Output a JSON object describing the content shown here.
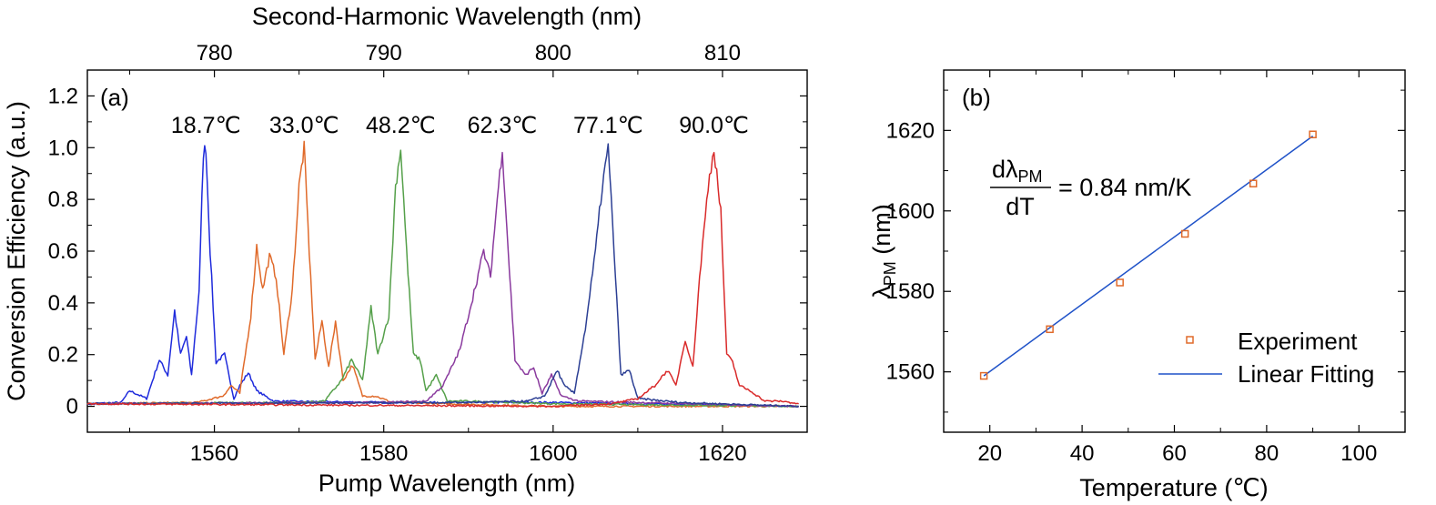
{
  "colors": {
    "blue": "#1f2bdc",
    "orange": "#e06a2a",
    "green": "#55a04a",
    "purple": "#8a3a9e",
    "navy": "#2c3f94",
    "red": "#d92a2a",
    "fit_line": "#1f52c8",
    "marker": "#e06a2a"
  },
  "chart_data": [
    {
      "type": "line",
      "panel_label": "(a)",
      "xlabel": "Pump Wavelength (nm)",
      "ylabel": "Conversion Efficiency (a.u.)",
      "top_xlabel": "Second-Harmonic Wavelength (nm)",
      "xlim": [
        1545,
        1630
      ],
      "ylim": [
        -0.1,
        1.3
      ],
      "xticks": [
        1560,
        1580,
        1600,
        1620
      ],
      "yticks": [
        0,
        0.2,
        0.4,
        0.6,
        0.8,
        1.0,
        1.2
      ],
      "ytick_labels": [
        "0",
        "0.2",
        "0.4",
        "0.6",
        "0.8",
        "1.0",
        "1.2"
      ],
      "top_xticks": [
        780,
        790,
        800,
        810
      ],
      "grid": false,
      "series": [
        {
          "name": "18.7℃",
          "color_key": "blue",
          "peak_x": 1559.0,
          "points": [
            [
              1545,
              0.01
            ],
            [
              1549,
              0.015
            ],
            [
              1550,
              0.06
            ],
            [
              1552,
              0.03
            ],
            [
              1553.5,
              0.18
            ],
            [
              1554.5,
              0.12
            ],
            [
              1555.3,
              0.37
            ],
            [
              1556,
              0.2
            ],
            [
              1556.7,
              0.27
            ],
            [
              1557.3,
              0.12
            ],
            [
              1558.2,
              0.45
            ],
            [
              1558.7,
              0.98
            ],
            [
              1559.0,
              1.0
            ],
            [
              1559.5,
              0.6
            ],
            [
              1560.2,
              0.17
            ],
            [
              1561.2,
              0.2
            ],
            [
              1562.3,
              0.03
            ],
            [
              1563,
              0.08
            ],
            [
              1564,
              0.13
            ],
            [
              1565,
              0.06
            ],
            [
              1567,
              0.02
            ],
            [
              1580,
              0.015
            ],
            [
              1600,
              0.015
            ],
            [
              1629,
              0.0
            ]
          ]
        },
        {
          "name": "33.0℃",
          "color_key": "orange",
          "peak_x": 1570.6,
          "points": [
            [
              1545,
              0.01
            ],
            [
              1558,
              0.015
            ],
            [
              1561,
              0.04
            ],
            [
              1562,
              0.08
            ],
            [
              1563,
              0.05
            ],
            [
              1564.3,
              0.35
            ],
            [
              1565,
              0.62
            ],
            [
              1565.7,
              0.45
            ],
            [
              1566.5,
              0.58
            ],
            [
              1567.3,
              0.5
            ],
            [
              1568.2,
              0.2
            ],
            [
              1569.2,
              0.45
            ],
            [
              1570.0,
              0.85
            ],
            [
              1570.6,
              1.0
            ],
            [
              1571.2,
              0.6
            ],
            [
              1571.9,
              0.18
            ],
            [
              1572.7,
              0.33
            ],
            [
              1573.5,
              0.15
            ],
            [
              1574.3,
              0.33
            ],
            [
              1575.2,
              0.1
            ],
            [
              1576.3,
              0.16
            ],
            [
              1577.5,
              0.04
            ],
            [
              1579,
              0.04
            ],
            [
              1581,
              0.015
            ],
            [
              1600,
              0.0
            ],
            [
              1629,
              0.0
            ]
          ]
        },
        {
          "name": "48.2℃",
          "color_key": "green",
          "peak_x": 1582.0,
          "points": [
            [
              1545,
              0.01
            ],
            [
              1570,
              0.015
            ],
            [
              1573,
              0.02
            ],
            [
              1575,
              0.1
            ],
            [
              1576.2,
              0.18
            ],
            [
              1577.5,
              0.1
            ],
            [
              1578.5,
              0.38
            ],
            [
              1579.3,
              0.2
            ],
            [
              1580.6,
              0.35
            ],
            [
              1581.4,
              0.85
            ],
            [
              1582.0,
              1.0
            ],
            [
              1582.7,
              0.6
            ],
            [
              1583.5,
              0.2
            ],
            [
              1584.3,
              0.18
            ],
            [
              1585,
              0.06
            ],
            [
              1586.2,
              0.12
            ],
            [
              1587.5,
              0.02
            ],
            [
              1590,
              0.02
            ],
            [
              1600,
              0.01
            ],
            [
              1629,
              0.0
            ]
          ]
        },
        {
          "name": "62.3℃",
          "color_key": "purple",
          "peak_x": 1594.0,
          "points": [
            [
              1545,
              0.01
            ],
            [
              1580,
              0.015
            ],
            [
              1585,
              0.02
            ],
            [
              1587,
              0.08
            ],
            [
              1589,
              0.22
            ],
            [
              1590.5,
              0.42
            ],
            [
              1591.8,
              0.6
            ],
            [
              1592.6,
              0.5
            ],
            [
              1593.4,
              0.8
            ],
            [
              1594.0,
              1.0
            ],
            [
              1594.7,
              0.6
            ],
            [
              1595.5,
              0.18
            ],
            [
              1596.7,
              0.12
            ],
            [
              1597.7,
              0.15
            ],
            [
              1598.7,
              0.05
            ],
            [
              1599.8,
              0.12
            ],
            [
              1601,
              0.04
            ],
            [
              1603,
              0.02
            ],
            [
              1610,
              0.015
            ],
            [
              1629,
              0.0
            ]
          ]
        },
        {
          "name": "77.1℃",
          "color_key": "navy",
          "peak_x": 1606.5,
          "points": [
            [
              1545,
              0.01
            ],
            [
              1590,
              0.015
            ],
            [
              1597,
              0.02
            ],
            [
              1599,
              0.04
            ],
            [
              1600.5,
              0.14
            ],
            [
              1601.3,
              0.08
            ],
            [
              1602.5,
              0.05
            ],
            [
              1603.8,
              0.3
            ],
            [
              1605.0,
              0.6
            ],
            [
              1605.8,
              0.85
            ],
            [
              1606.5,
              1.0
            ],
            [
              1607.2,
              0.6
            ],
            [
              1608,
              0.12
            ],
            [
              1609,
              0.14
            ],
            [
              1610,
              0.03
            ],
            [
              1615,
              0.015
            ],
            [
              1629,
              0.0
            ]
          ]
        },
        {
          "name": "90.0℃",
          "color_key": "red",
          "peak_x": 1619.0,
          "points": [
            [
              1545,
              0.01
            ],
            [
              1600,
              0.0
            ],
            [
              1607,
              0.01
            ],
            [
              1610,
              0.03
            ],
            [
              1612,
              0.08
            ],
            [
              1613.5,
              0.14
            ],
            [
              1614.5,
              0.08
            ],
            [
              1615.6,
              0.26
            ],
            [
              1616.5,
              0.15
            ],
            [
              1617.3,
              0.5
            ],
            [
              1618.3,
              0.85
            ],
            [
              1619.0,
              1.0
            ],
            [
              1619.8,
              0.75
            ],
            [
              1620.5,
              0.2
            ],
            [
              1621.2,
              0.17
            ],
            [
              1622,
              0.08
            ],
            [
              1623.3,
              0.06
            ],
            [
              1625,
              0.02
            ],
            [
              1627,
              0.02
            ],
            [
              1629,
              0.01
            ]
          ]
        }
      ]
    },
    {
      "type": "scatter",
      "panel_label": "(b)",
      "xlabel": "Temperature (℃)",
      "ylabel_main": "λ",
      "ylabel_sub": "PM",
      "ylabel_unit": " (nm)",
      "xlim": [
        10,
        110
      ],
      "ylim": [
        1545,
        1635
      ],
      "xticks": [
        20,
        40,
        60,
        80,
        100
      ],
      "yticks": [
        1560,
        1580,
        1600,
        1620
      ],
      "grid": false,
      "annotation": {
        "numerator": "dλ",
        "numerator_sub": "PM",
        "denominator": "dT",
        "rhs": "= 0.84  nm/K"
      },
      "legend_position": "lower-right",
      "series": [
        {
          "name": "Experiment",
          "x": [
            18.7,
            33.0,
            48.2,
            62.3,
            77.1,
            90.0
          ],
          "y": [
            1559.0,
            1570.6,
            1582.2,
            1594.3,
            1606.8,
            1619.0
          ]
        },
        {
          "name": "Linear Fitting",
          "x": [
            18.7,
            90.0
          ],
          "y": [
            1559.0,
            1618.6
          ]
        }
      ]
    }
  ]
}
